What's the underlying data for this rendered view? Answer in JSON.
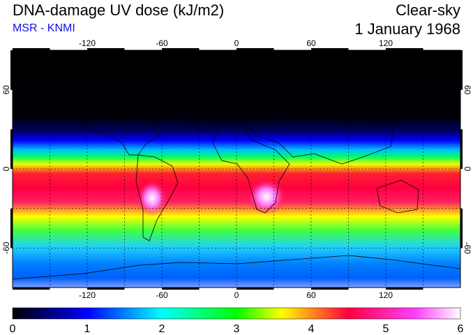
{
  "header": {
    "title": "DNA-damage UV dose (kJ/m2)",
    "source": "MSR - KNMI",
    "condition": "Clear-sky",
    "date": "1 January 1968"
  },
  "map": {
    "projection": "equirectangular",
    "lon_range": [
      -180,
      180
    ],
    "lat_range": [
      -90,
      90
    ],
    "lon_ticks": [
      -120,
      -60,
      0,
      60,
      120
    ],
    "lat_ticks": [
      60,
      0,
      -60
    ],
    "gridlines": "dotted every 30 degrees"
  },
  "colorbar": {
    "min": 0,
    "max": 6,
    "tick_labels": [
      "0",
      "1",
      "2",
      "3",
      "4",
      "5",
      "6"
    ],
    "colors": [
      "#000000",
      "#0000ff",
      "#00ffff",
      "#00ff00",
      "#ffff00",
      "#ff0040",
      "#ff40ff",
      "#ffffff"
    ]
  }
}
